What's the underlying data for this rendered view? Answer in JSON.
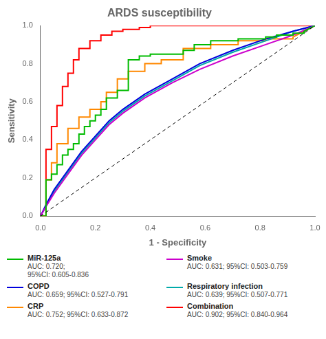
{
  "chart_data": {
    "type": "line",
    "title": "ARDS susceptibility",
    "x_label": "1 - Specificity",
    "y_label": "Sensitivity",
    "xlim": [
      0.0,
      1.0
    ],
    "ylim": [
      0.0,
      1.0
    ],
    "xticks": [
      {
        "value": 0.0,
        "label": "0.0"
      },
      0.2,
      0.4,
      0.6,
      0.8,
      {
        "value": 1.0,
        "label": "1.0"
      }
    ],
    "yticks": [
      {
        "value": 0.0,
        "label": "0.0"
      },
      0.2,
      0.4,
      0.6,
      0.8,
      {
        "value": 1.0,
        "label": "1.0"
      }
    ],
    "grid": false,
    "legend": "bottom",
    "series": [
      {
        "color": "#000000",
        "line_style": "dashed",
        "x": [
          0,
          1
        ],
        "values": [
          0,
          1
        ]
      },
      {
        "name": "MiR-125a",
        "color": "#00bb00",
        "x": [
          0.0,
          0.02,
          0.02,
          0.04,
          0.04,
          0.06,
          0.06,
          0.08,
          0.08,
          0.1,
          0.1,
          0.12,
          0.12,
          0.14,
          0.14,
          0.16,
          0.16,
          0.18,
          0.18,
          0.2,
          0.2,
          0.22,
          0.22,
          0.24,
          0.24,
          0.28,
          0.28,
          0.32,
          0.32,
          0.36,
          0.36,
          0.4,
          0.4,
          0.44,
          0.44,
          0.52,
          0.52,
          0.56,
          0.56,
          0.62,
          0.62,
          0.72,
          0.72,
          0.82,
          0.82,
          0.86,
          0.86,
          0.92,
          0.92,
          0.96,
          0.96,
          1.0
        ],
        "values": [
          0.0,
          0.0,
          0.19,
          0.19,
          0.22,
          0.22,
          0.27,
          0.27,
          0.32,
          0.32,
          0.35,
          0.35,
          0.38,
          0.38,
          0.43,
          0.43,
          0.47,
          0.47,
          0.5,
          0.5,
          0.53,
          0.53,
          0.56,
          0.56,
          0.62,
          0.62,
          0.66,
          0.66,
          0.82,
          0.82,
          0.84,
          0.84,
          0.85,
          0.85,
          0.85,
          0.85,
          0.87,
          0.87,
          0.9,
          0.9,
          0.92,
          0.92,
          0.93,
          0.93,
          0.94,
          0.94,
          0.95,
          0.95,
          0.96,
          0.96,
          0.97,
          1.0
        ]
      },
      {
        "name": "Smoke",
        "color": "#cc00cc",
        "x": [
          0.0,
          0.02,
          0.05,
          0.1,
          0.15,
          0.2,
          0.25,
          0.3,
          0.38,
          0.48,
          0.58,
          0.7,
          0.82,
          0.92,
          1.0
        ],
        "values": [
          0.0,
          0.05,
          0.12,
          0.22,
          0.32,
          0.4,
          0.48,
          0.54,
          0.62,
          0.7,
          0.77,
          0.84,
          0.9,
          0.95,
          1.0
        ]
      },
      {
        "name": "COPD",
        "color": "#0000dd",
        "x": [
          0.0,
          0.02,
          0.05,
          0.1,
          0.15,
          0.2,
          0.25,
          0.3,
          0.38,
          0.48,
          0.58,
          0.7,
          0.82,
          0.92,
          1.0
        ],
        "values": [
          0.0,
          0.06,
          0.14,
          0.24,
          0.34,
          0.42,
          0.5,
          0.56,
          0.64,
          0.72,
          0.8,
          0.87,
          0.93,
          0.97,
          1.0
        ]
      },
      {
        "name": "Respiratory infection",
        "color": "#00aaaa",
        "x": [
          0.0,
          0.02,
          0.05,
          0.1,
          0.15,
          0.2,
          0.25,
          0.3,
          0.38,
          0.48,
          0.58,
          0.7,
          0.82,
          0.92,
          1.0
        ],
        "values": [
          0.0,
          0.05,
          0.13,
          0.23,
          0.33,
          0.41,
          0.49,
          0.55,
          0.63,
          0.71,
          0.79,
          0.86,
          0.92,
          0.97,
          1.0
        ]
      },
      {
        "name": "CRP",
        "color": "#ff8800",
        "x": [
          0.0,
          0.02,
          0.02,
          0.04,
          0.04,
          0.06,
          0.06,
          0.1,
          0.1,
          0.14,
          0.14,
          0.18,
          0.18,
          0.22,
          0.22,
          0.24,
          0.24,
          0.28,
          0.28,
          0.32,
          0.32,
          0.38,
          0.38,
          0.44,
          0.44,
          0.52,
          0.52,
          0.62,
          0.62,
          0.72,
          0.72,
          0.82,
          0.82,
          0.92,
          0.92,
          1.0
        ],
        "values": [
          0.0,
          0.0,
          0.19,
          0.19,
          0.28,
          0.28,
          0.38,
          0.38,
          0.46,
          0.46,
          0.52,
          0.52,
          0.56,
          0.56,
          0.6,
          0.6,
          0.65,
          0.65,
          0.72,
          0.72,
          0.76,
          0.76,
          0.8,
          0.8,
          0.82,
          0.82,
          0.88,
          0.88,
          0.9,
          0.9,
          0.92,
          0.92,
          0.93,
          0.93,
          0.94,
          1.0
        ]
      },
      {
        "name": "Combination",
        "color": "#ff0000",
        "x": [
          0.0,
          0.02,
          0.02,
          0.04,
          0.04,
          0.06,
          0.06,
          0.08,
          0.08,
          0.1,
          0.1,
          0.12,
          0.12,
          0.14,
          0.14,
          0.18,
          0.18,
          0.22,
          0.22,
          0.26,
          0.26,
          0.3,
          0.3,
          0.36,
          0.36,
          0.4,
          0.4,
          0.5,
          0.5,
          0.6,
          1.0
        ],
        "values": [
          0.0,
          0.0,
          0.35,
          0.35,
          0.47,
          0.47,
          0.58,
          0.58,
          0.68,
          0.68,
          0.75,
          0.75,
          0.82,
          0.82,
          0.88,
          0.88,
          0.92,
          0.92,
          0.95,
          0.95,
          0.97,
          0.97,
          0.98,
          0.98,
          0.99,
          0.99,
          1.0,
          1.0,
          1.0,
          1.0,
          1.0
        ]
      }
    ],
    "annotations": [
      {
        "series": "MiR-125a",
        "text": [
          "AUC: 0.720;",
          "95%CI: 0.605-0.836"
        ]
      },
      {
        "series": "Smoke",
        "text": [
          "AUC: 0.631; 95%CI: 0.503-0.759"
        ]
      },
      {
        "series": "COPD",
        "text": [
          "AUC: 0.659; 95%CI: 0.527-0.791"
        ]
      },
      {
        "series": "Respiratory infection",
        "text": [
          "AUC: 0.639; 95%CI: 0.507-0.771"
        ]
      },
      {
        "series": "CRP",
        "text": [
          "AUC: 0.752; 95%CI: 0.633-0.872"
        ]
      },
      {
        "series": "Combination",
        "text": [
          "AUC: 0.902; 95%CI: 0.840-0.964"
        ]
      }
    ]
  }
}
